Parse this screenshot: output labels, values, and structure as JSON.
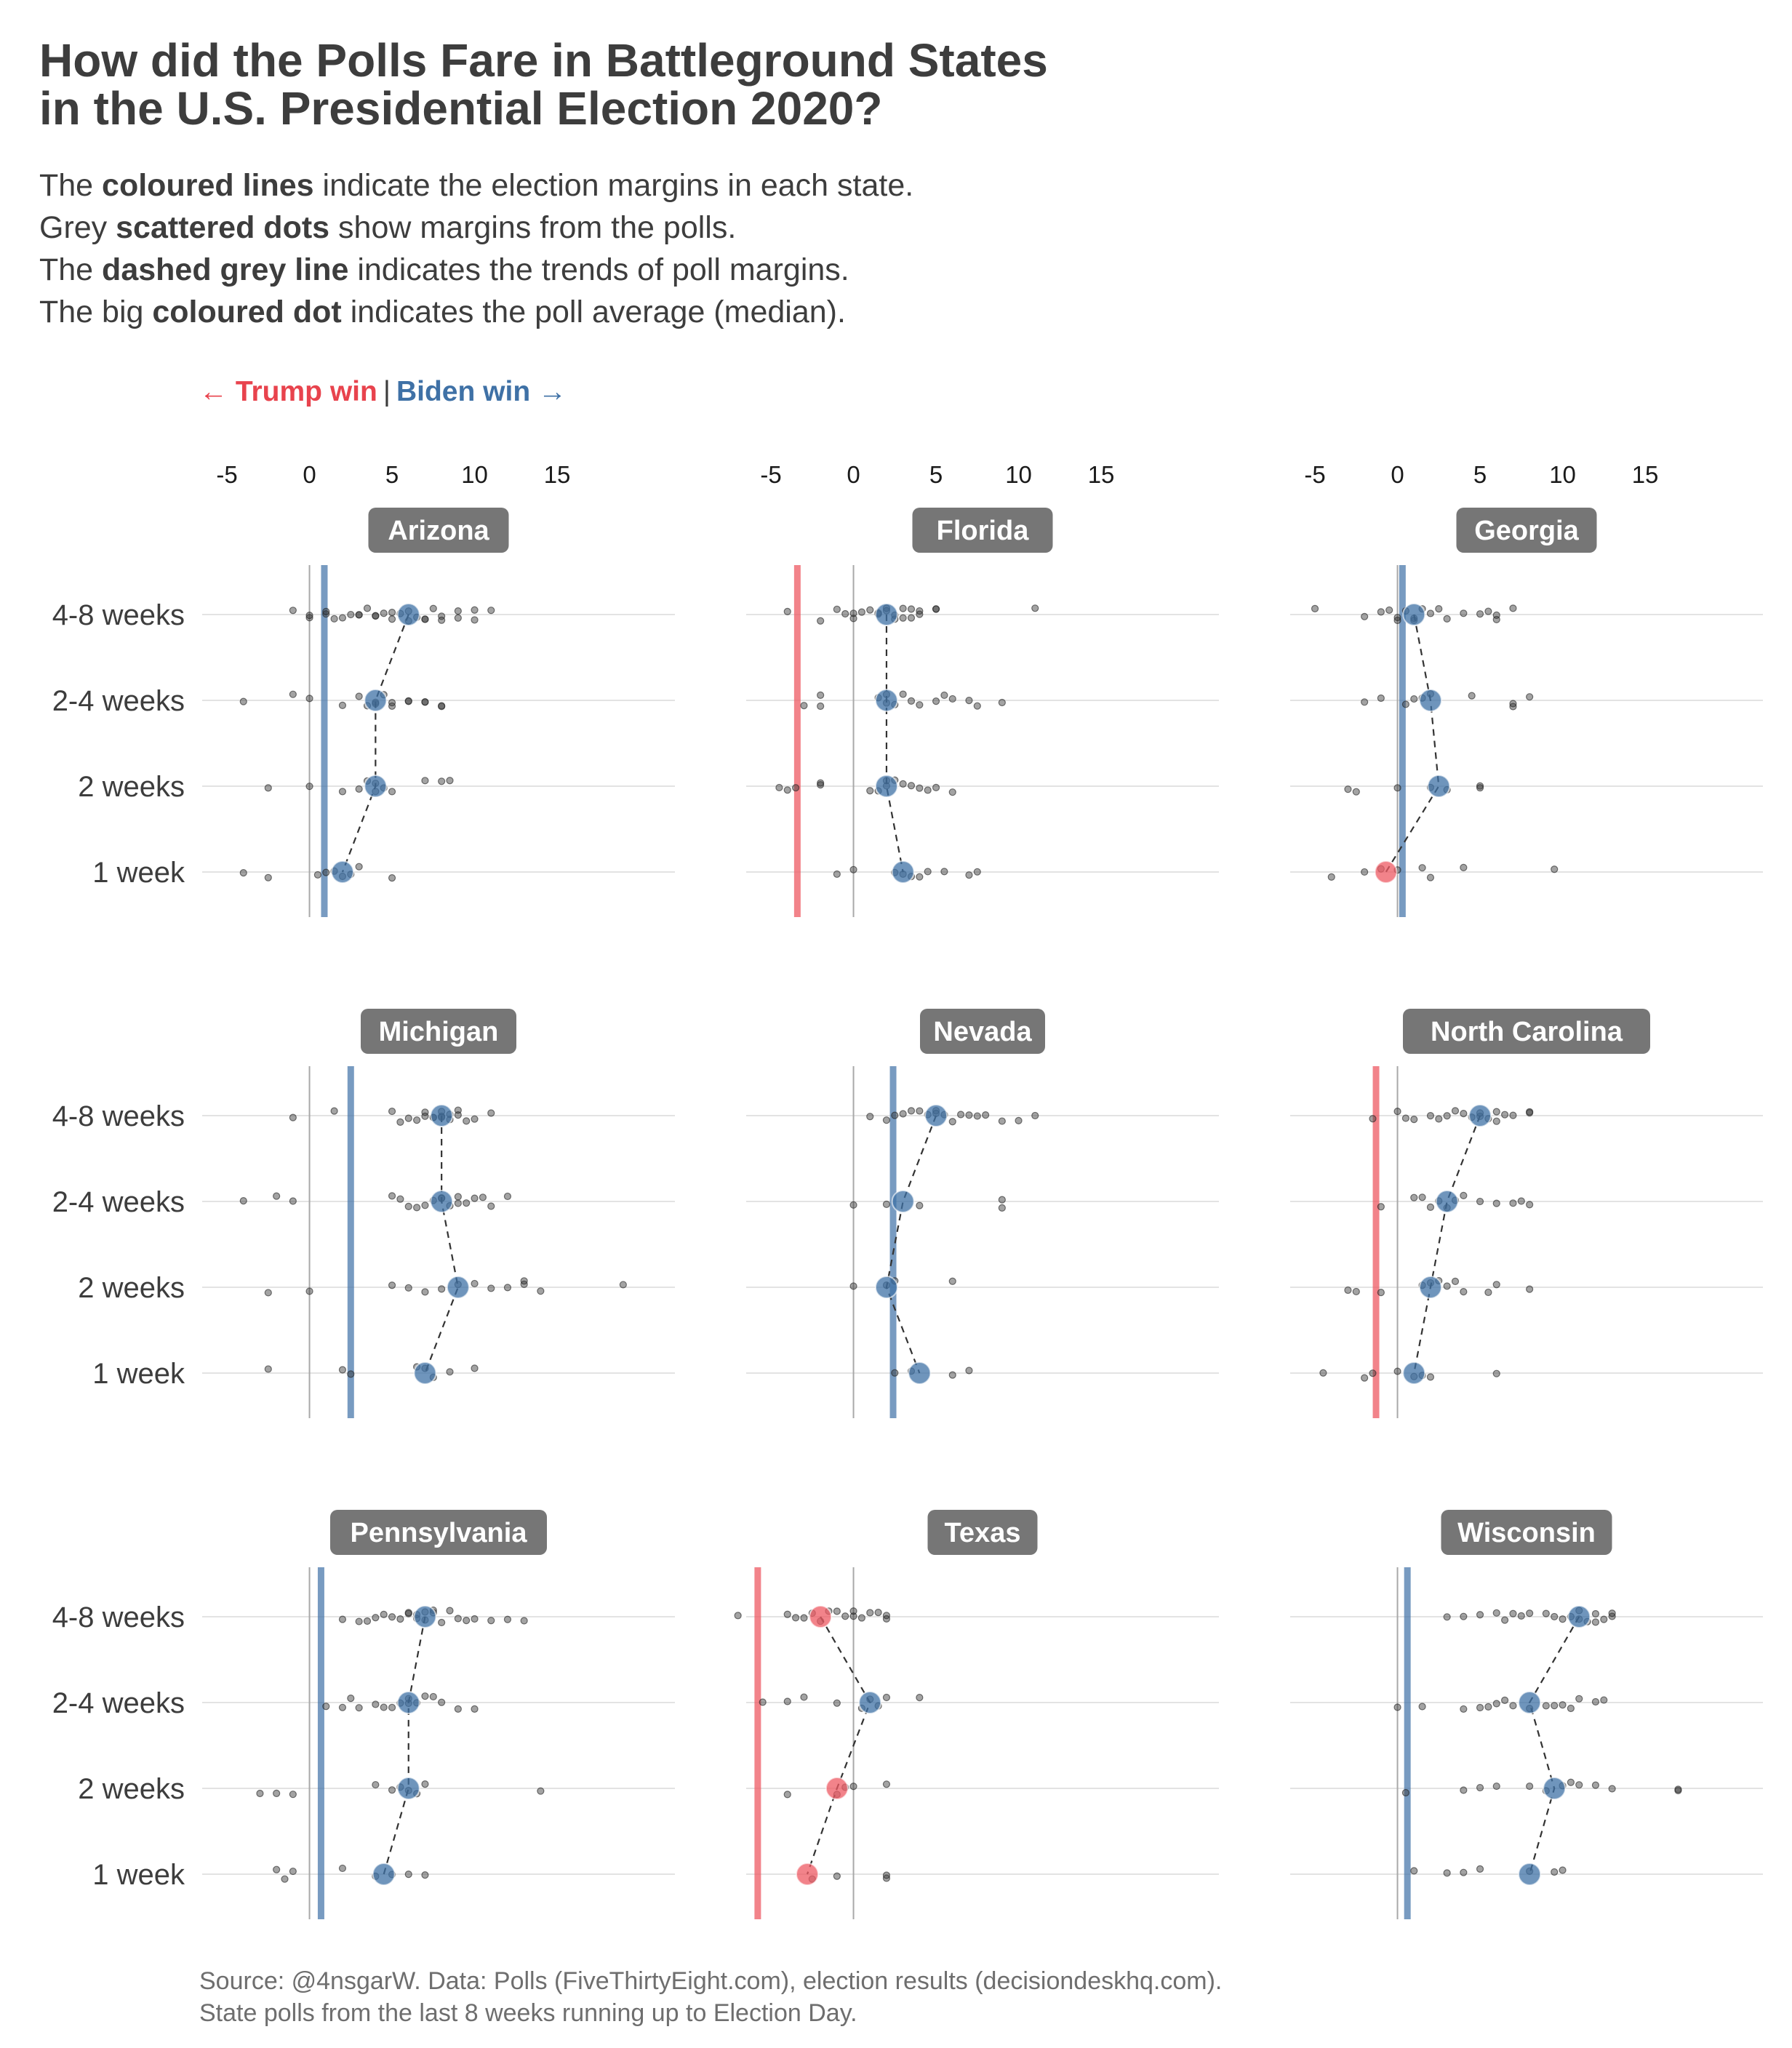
{
  "title": {
    "line1": "How did the Polls Fare in Battleground States",
    "line2": "in the U.S. Presidential Election 2020?"
  },
  "subtitle": {
    "l1_pre": "The ",
    "l1_bold": "coloured lines",
    "l1_post": " indicate the election margins in each state.",
    "l2_pre": "Grey ",
    "l2_bold": "scattered dots",
    "l2_post": " show margins from the polls.",
    "l3_pre": "The ",
    "l3_bold": "dashed grey line",
    "l3_post": " indicates the trends of poll margins.",
    "l4_pre": "The big ",
    "l4_bold": "coloured dot",
    "l4_post": " indicates the poll average (median)."
  },
  "direction": {
    "trump": "← Trump win",
    "separator": "|",
    "biden": "Biden win →"
  },
  "source": {
    "line1": "Source: @4nsgarW. Data: Polls (FiveThirtyEight.com), election results (decisiondeskhq.com).",
    "line2": "State polls from the last 8 weeks running up to Election Day."
  },
  "colors": {
    "trump": "#ee5a63",
    "biden": "#3f71a6",
    "strip": "#767676",
    "poll_dot": "#333333",
    "grid": "#e3e3e3"
  },
  "chart_data": {
    "type": "scatter",
    "xlim": [
      -6.5,
      20
    ],
    "x_ticks": [
      -5,
      0,
      5,
      10,
      15
    ],
    "y_categories": [
      "4-8 weeks",
      "2-4 weeks",
      "2 weeks",
      "1 week"
    ],
    "grid": true,
    "states": [
      {
        "name": "Arizona",
        "result": 0.9,
        "median": [
          6.0,
          4.0,
          4.0,
          2.0
        ],
        "polls": [
          [
            -1,
            0,
            0,
            1,
            1,
            1.5,
            2,
            2.5,
            3,
            3,
            3.5,
            4,
            4,
            4.5,
            5,
            5,
            5.5,
            6,
            6,
            6.5,
            7,
            7,
            7.5,
            8,
            8,
            9,
            9,
            10,
            10,
            11
          ],
          [
            -4,
            -1,
            0,
            2,
            3,
            3.5,
            4,
            4,
            4.5,
            5,
            5,
            6,
            6,
            7,
            7,
            8,
            8
          ],
          [
            -2.5,
            0,
            2,
            3,
            3.5,
            4,
            4,
            4.5,
            5,
            7,
            8,
            8.5
          ],
          [
            -4,
            -2.5,
            0.5,
            1,
            1.5,
            2,
            2.5,
            3,
            5
          ]
        ]
      },
      {
        "name": "Florida",
        "result": -3.4,
        "median": [
          2.0,
          2.0,
          2.0,
          3.0
        ],
        "polls": [
          [
            -4,
            -2,
            -1,
            -0.5,
            0,
            0,
            0.5,
            1,
            1.5,
            1.5,
            2,
            2,
            2.5,
            2.5,
            3,
            3,
            3.5,
            3.5,
            4,
            4,
            5,
            5,
            11
          ],
          [
            -3,
            -2,
            -2,
            1.5,
            2,
            2,
            2.5,
            3,
            3.5,
            4,
            5,
            5.5,
            6,
            7,
            7.5,
            9
          ],
          [
            -4.5,
            -4,
            -3.5,
            -2,
            -2,
            1,
            1.5,
            2,
            2,
            2.5,
            3,
            3.5,
            4,
            4.5,
            5,
            6
          ],
          [
            -1,
            0,
            2.5,
            3,
            3.5,
            4,
            4.5,
            5.5,
            7,
            7.5
          ]
        ]
      },
      {
        "name": "Georgia",
        "result": 0.3,
        "median": [
          1.0,
          2.0,
          2.5,
          -0.7
        ],
        "polls": [
          [
            -5,
            -2,
            -1,
            -0.5,
            0,
            0,
            0.5,
            1,
            1,
            1.5,
            2,
            2.5,
            3,
            4,
            5,
            5.5,
            6,
            6,
            7
          ],
          [
            -2,
            -1,
            0.5,
            1,
            1.5,
            2,
            4.5,
            7,
            7,
            8
          ],
          [
            -3,
            -2.5,
            0,
            2,
            3,
            5,
            5
          ],
          [
            -4,
            -2,
            -1,
            0,
            1.5,
            2,
            4,
            9.5
          ]
        ]
      },
      {
        "name": "Michigan",
        "result": 2.5,
        "median": [
          8.0,
          8.0,
          9.0,
          7.0
        ],
        "polls": [
          [
            -1,
            1.5,
            5,
            5.5,
            6,
            6.5,
            7,
            7,
            7.5,
            7.5,
            8,
            8,
            8,
            8.5,
            8.5,
            9,
            9,
            9.5,
            10,
            11
          ],
          [
            -4,
            -2,
            -1,
            5,
            5.5,
            6,
            6.5,
            7,
            7.5,
            8,
            8,
            8.5,
            9,
            9,
            9.5,
            10,
            10.5,
            11,
            12
          ],
          [
            -2.5,
            0,
            5,
            6,
            7,
            8,
            9,
            10,
            11,
            12,
            13,
            13,
            14,
            19
          ],
          [
            -2.5,
            2,
            2.5,
            6.5,
            7,
            7.5,
            8.5,
            10
          ]
        ]
      },
      {
        "name": "Nevada",
        "result": 2.4,
        "median": [
          5.0,
          3.0,
          2.0,
          4.0
        ],
        "polls": [
          [
            1,
            2,
            2.5,
            3,
            3.5,
            4,
            4.5,
            5,
            5,
            5.5,
            6,
            6.5,
            7,
            7.5,
            8,
            9,
            10,
            11
          ],
          [
            0,
            2,
            4,
            9,
            9
          ],
          [
            0,
            2,
            2.5,
            6
          ],
          [
            2.5,
            3.5,
            6,
            7
          ]
        ]
      },
      {
        "name": "North Carolina",
        "result": -1.3,
        "median": [
          5.0,
          3.0,
          2.0,
          1.0
        ],
        "polls": [
          [
            -1.5,
            0,
            0.5,
            1,
            2,
            2.5,
            3,
            3.5,
            4,
            4.5,
            5,
            5,
            5.5,
            6,
            6,
            6.5,
            7,
            8,
            8
          ],
          [
            -1,
            1,
            1.5,
            2,
            2.5,
            3,
            3.5,
            4,
            5,
            6,
            7,
            7.5,
            8
          ],
          [
            -3,
            -2.5,
            -1,
            1.5,
            2,
            2.5,
            3,
            3.5,
            4,
            5.5,
            6,
            8
          ],
          [
            -4.5,
            -2,
            -1.5,
            0,
            1,
            1.5,
            2,
            6
          ]
        ]
      },
      {
        "name": "Pennsylvania",
        "result": 0.7,
        "median": [
          7.0,
          6.0,
          6.0,
          4.5
        ],
        "polls": [
          [
            2,
            3,
            3.5,
            4,
            4.5,
            5,
            5.5,
            6,
            6,
            6.5,
            6.5,
            7,
            7,
            7.5,
            7.5,
            8,
            8.5,
            9,
            9.5,
            10,
            11,
            12,
            13
          ],
          [
            1,
            2,
            2.5,
            3,
            4,
            4.5,
            5,
            5.5,
            6,
            6,
            6.5,
            7,
            7.5,
            8,
            9,
            10
          ],
          [
            -3,
            -2,
            -1,
            4,
            5,
            5.5,
            6,
            6.5,
            7,
            14
          ],
          [
            -2,
            -1.5,
            -1,
            2,
            4,
            5,
            6,
            7
          ]
        ]
      },
      {
        "name": "Texas",
        "result": -5.8,
        "median": [
          -2.0,
          1.0,
          -1.0,
          -2.8
        ],
        "polls": [
          [
            -7,
            -4,
            -3.5,
            -3,
            -2.5,
            -2,
            -1.5,
            -1,
            -0.5,
            0,
            0,
            0.5,
            1,
            1.5,
            2,
            2
          ],
          [
            -5.5,
            -4,
            -3,
            -1,
            0.5,
            1,
            1.5,
            2,
            4
          ],
          [
            -4,
            -1,
            -0.5,
            0,
            2
          ],
          [
            -2.5,
            -1,
            2,
            2
          ]
        ]
      },
      {
        "name": "Wisconsin",
        "result": 0.6,
        "median": [
          11.0,
          8.0,
          9.5,
          8.0
        ],
        "polls": [
          [
            3,
            4,
            5,
            6,
            6.5,
            7,
            7.5,
            8,
            9,
            9.5,
            10,
            10.5,
            11,
            11,
            11.5,
            12,
            12,
            12.5,
            13,
            13
          ],
          [
            0,
            1.5,
            4,
            5,
            5.5,
            6,
            6.5,
            7,
            8,
            9,
            9.5,
            10,
            10.5,
            11,
            12,
            12.5
          ],
          [
            0.5,
            4,
            5,
            6,
            8,
            9,
            10,
            10.5,
            11,
            12,
            13,
            17,
            17
          ],
          [
            1,
            3,
            4,
            5,
            8,
            9.5,
            10
          ]
        ]
      }
    ]
  }
}
